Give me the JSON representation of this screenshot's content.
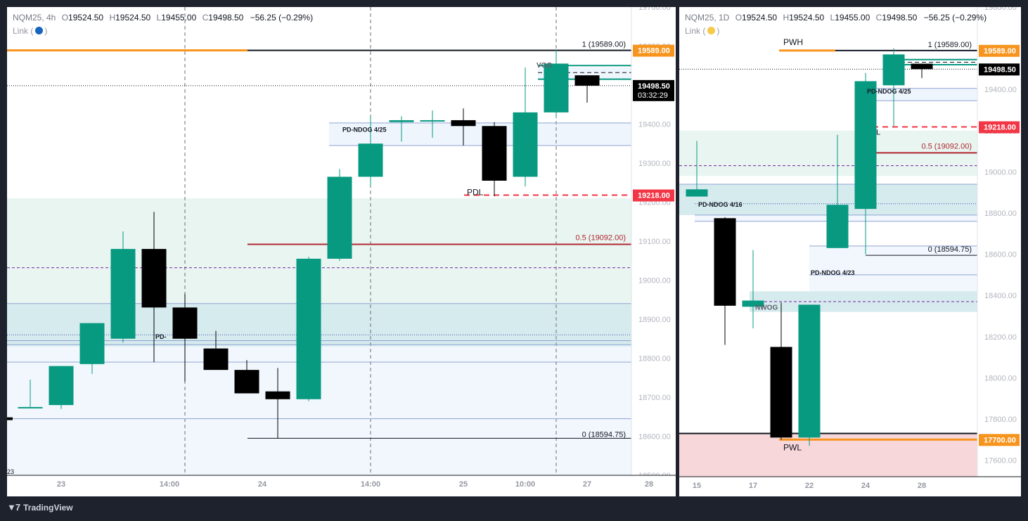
{
  "footer": {
    "brand": "TradingView"
  },
  "charts": [
    {
      "symbol": "NQM25, 4h",
      "ohlc": {
        "o_label": "O",
        "o": "19524.50",
        "h_label": "H",
        "h": "19524.50",
        "l_label": "L",
        "l": "19455.00",
        "c_label": "C",
        "c": "19498.50",
        "change": "−56.25 (−0.29%)"
      },
      "link_label": "Link (",
      "link_close": ")",
      "link_color": "#2962ff"
    },
    {
      "symbol": "NQM25, 1D",
      "ohlc": {
        "o_label": "O",
        "o": "19524.50",
        "h_label": "H",
        "h": "19524.50",
        "l_label": "L",
        "l": "19455.00",
        "c_label": "C",
        "c": "19498.50",
        "change": "−56.25 (−0.29%)"
      },
      "link_label": "Link (",
      "link_close": ")",
      "link_color": "#f7c948"
    }
  ],
  "chart_data": [
    {
      "type": "candlestick",
      "timeframe": "4h",
      "ylim": [
        18500,
        19700
      ],
      "y_ticks": [
        18500,
        18600,
        18700,
        18800,
        18900,
        19000,
        19100,
        19200,
        19300,
        19400,
        19500,
        19600,
        19700
      ],
      "y_tick_labels": [
        "18500.00",
        "18600.00",
        "18700.00",
        "18800.00",
        "18900.00",
        "19000.00",
        "19100.00",
        "19200.00",
        "19300.00",
        "19400.00",
        "19500.00",
        "19600.00",
        "19700.00"
      ],
      "x_ticks": [
        {
          "i": 1,
          "label": "23"
        },
        {
          "i": 4.5,
          "label": "14:00"
        },
        {
          "i": 7.5,
          "label": "24"
        },
        {
          "i": 11,
          "label": "14:00"
        },
        {
          "i": 14,
          "label": "25"
        },
        {
          "i": 16,
          "label": "10:00"
        },
        {
          "i": 18,
          "label": "27"
        },
        {
          "i": 20,
          "label": "28"
        }
      ],
      "edge_label": "23",
      "candles": [
        {
          "o": 18675,
          "h": 18745,
          "l": 18675,
          "c": 18675
        },
        {
          "o": 18680,
          "h": 18780,
          "l": 18670,
          "c": 18780
        },
        {
          "o": 18785,
          "h": 18890,
          "l": 18760,
          "c": 18890
        },
        {
          "o": 18850,
          "h": 19125,
          "l": 18840,
          "c": 19080
        },
        {
          "o": 19080,
          "h": 19175,
          "l": 18790,
          "c": 18930
        },
        {
          "o": 18930,
          "h": 18965,
          "l": 18740,
          "c": 18850
        },
        {
          "o": 18825,
          "h": 18870,
          "l": 18780,
          "c": 18770
        },
        {
          "o": 18770,
          "h": 18795,
          "l": 18720,
          "c": 18710
        },
        {
          "o": 18715,
          "h": 18775,
          "l": 18595,
          "c": 18695
        },
        {
          "o": 18695,
          "h": 19060,
          "l": 18690,
          "c": 19055
        },
        {
          "o": 19055,
          "h": 19285,
          "l": 19050,
          "c": 19265
        },
        {
          "o": 19265,
          "h": 19420,
          "l": 19240,
          "c": 19350
        },
        {
          "o": 19405,
          "h": 19420,
          "l": 19355,
          "c": 19410
        },
        {
          "o": 19408,
          "h": 19435,
          "l": 19365,
          "c": 19410
        },
        {
          "o": 19410,
          "h": 19440,
          "l": 19345,
          "c": 19395
        },
        {
          "o": 19395,
          "h": 19405,
          "l": 19215,
          "c": 19255
        },
        {
          "o": 19265,
          "h": 19545,
          "l": 19240,
          "c": 19430
        },
        {
          "o": 19430,
          "h": 19590,
          "l": 19415,
          "c": 19555
        },
        {
          "o": 19525,
          "h": 19525,
          "l": 19455,
          "c": 19498.5
        }
      ],
      "annotations": [
        {
          "text": "1 (19589.00)",
          "y": 19589
        },
        {
          "text": "0.5 (19092.00)",
          "y": 19092
        },
        {
          "text": "0 (18594.75)",
          "y": 18594.75
        },
        {
          "text": "PDL",
          "y": 19218
        },
        {
          "text": "PD-NDOG 4/25",
          "y": 19380
        },
        {
          "text": "PD-",
          "y": 18850
        },
        {
          "text": "VOG",
          "y": 19545
        }
      ],
      "price_tags": [
        {
          "text": "19589.00",
          "y": 19589,
          "color": "#f7941d"
        },
        {
          "text": "19498.50",
          "sub": "03:32:29",
          "y": 19498.5,
          "color": "#000000"
        },
        {
          "text": "19218.00",
          "y": 19218,
          "color": "#f23645"
        }
      ]
    },
    {
      "type": "candlestick",
      "timeframe": "1D",
      "ylim": [
        17520,
        19800
      ],
      "y_ticks": [
        17600,
        17800,
        18000,
        18200,
        18400,
        18600,
        18800,
        19000,
        19200,
        19400,
        19600,
        19800
      ],
      "y_tick_labels": [
        "17600.00",
        "17800.00",
        "18000.00",
        "18200.00",
        "18400.00",
        "18600.00",
        "18800.00",
        "19000.00",
        "19200.00",
        "19400.00",
        "19600.00",
        "19800.00"
      ],
      "x_ticks": [
        {
          "i": 0,
          "label": "15"
        },
        {
          "i": 2,
          "label": "17"
        },
        {
          "i": 4,
          "label": "22"
        },
        {
          "i": 6,
          "label": "24"
        },
        {
          "i": 8,
          "label": "28"
        }
      ],
      "candles": [
        {
          "o": 18880,
          "h": 19150,
          "l": 18880,
          "c": 18915
        },
        {
          "o": 18775,
          "h": 18780,
          "l": 18160,
          "c": 18350
        },
        {
          "o": 18345,
          "h": 18620,
          "l": 18240,
          "c": 18375
        },
        {
          "o": 18150,
          "h": 18365,
          "l": 17700,
          "c": 17710
        },
        {
          "o": 17710,
          "h": 18355,
          "l": 17670,
          "c": 18355
        },
        {
          "o": 18630,
          "h": 19180,
          "l": 18630,
          "c": 18840
        },
        {
          "o": 18820,
          "h": 19480,
          "l": 18600,
          "c": 19440
        },
        {
          "o": 19420,
          "h": 19600,
          "l": 19220,
          "c": 19570
        },
        {
          "o": 19525,
          "h": 19525,
          "l": 19455,
          "c": 19498.5
        }
      ],
      "annotations": [
        {
          "text": "PWH",
          "y": 19589
        },
        {
          "text": "PWL",
          "y": 17700
        },
        {
          "text": "1 (19589.00)",
          "y": 19589
        },
        {
          "text": "0.5 (19092.00)",
          "y": 19092
        },
        {
          "text": "0 (18594.75)",
          "y": 18594.75
        },
        {
          "text": "PD-NDOG 4/25",
          "y": 19380
        },
        {
          "text": "PD-NDOG 4/16",
          "y": 18830
        },
        {
          "text": "PD-NDOG 4/23",
          "y": 18500
        },
        {
          "text": "NWOG",
          "y": 18330
        },
        {
          "text": "L",
          "y": 19180
        }
      ],
      "price_tags": [
        {
          "text": "19589.00",
          "y": 19589,
          "color": "#f7941d"
        },
        {
          "text": "19498.50",
          "y": 19498.5,
          "color": "#000000"
        },
        {
          "text": "19218.00",
          "y": 19218,
          "color": "#f23645"
        },
        {
          "text": "17700.00",
          "y": 17700,
          "color": "#f7941d"
        }
      ]
    }
  ]
}
